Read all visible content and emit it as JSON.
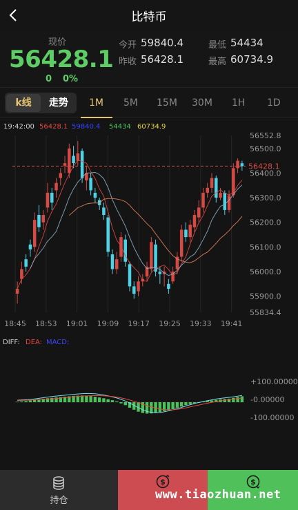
{
  "header": {
    "title": "比特币",
    "back_icon": "chevron-left-icon"
  },
  "price": {
    "label": "现价",
    "value": "56428.1",
    "change": "0",
    "change_pct": "0%",
    "open_label": "今开",
    "open": "59840.4",
    "prev_label": "昨收",
    "prev": "56428.1",
    "low_label": "最低",
    "low": "54434",
    "high_label": "最高",
    "high": "60734.9"
  },
  "tabs": {
    "kline": "k线",
    "trend": "走势",
    "periods": [
      "1M",
      "5M",
      "15M",
      "30M",
      "1H",
      "1D"
    ],
    "active_period": "1M"
  },
  "legend": {
    "time": "19:42:00",
    "v1": "56428.1",
    "v2": "59840.4",
    "v3": "54434",
    "v4": "60734.9",
    "colors": {
      "v1": "#e24a3f",
      "v2": "#3b43ff",
      "v3": "#4bc25a",
      "v4": "#e8d24a"
    }
  },
  "chart_data": {
    "type": "candlestick",
    "y_ticks": [
      "56552.8",
      "56500.0",
      "56400.0",
      "56300.0",
      "56200.0",
      "56100.0",
      "56000.0",
      "55900.0",
      "55834.4"
    ],
    "x_ticks": [
      "18:45",
      "18:53",
      "19:01",
      "19:09",
      "19:17",
      "19:25",
      "19:33",
      "19:41"
    ],
    "current_price_label": "56428.1",
    "ylim": [
      55834.4,
      56552.8
    ],
    "candles": [
      {
        "o": 55910,
        "c": 55930,
        "h": 55960,
        "l": 55870
      },
      {
        "o": 55970,
        "c": 56010,
        "h": 56040,
        "l": 55950
      },
      {
        "o": 56050,
        "c": 56020,
        "h": 56070,
        "l": 56000
      },
      {
        "o": 56110,
        "c": 56090,
        "h": 56130,
        "l": 56060
      },
      {
        "o": 56100,
        "c": 56210,
        "h": 56240,
        "l": 56080
      },
      {
        "o": 56230,
        "c": 56180,
        "h": 56270,
        "l": 56160
      },
      {
        "o": 56200,
        "c": 56230,
        "h": 56250,
        "l": 56170
      },
      {
        "o": 56260,
        "c": 56320,
        "h": 56360,
        "l": 56240
      },
      {
        "o": 56320,
        "c": 56280,
        "h": 56340,
        "l": 56250
      },
      {
        "o": 56330,
        "c": 56360,
        "h": 56380,
        "l": 56300
      },
      {
        "o": 56380,
        "c": 56400,
        "h": 56420,
        "l": 56350
      },
      {
        "o": 56430,
        "c": 56440,
        "h": 56470,
        "l": 56400
      },
      {
        "o": 56400,
        "c": 56500,
        "h": 56520,
        "l": 56380
      },
      {
        "o": 56470,
        "c": 56440,
        "h": 56510,
        "l": 56420
      },
      {
        "o": 56450,
        "c": 56480,
        "h": 56530,
        "l": 56430
      },
      {
        "o": 56490,
        "c": 56380,
        "h": 56500,
        "l": 56360
      },
      {
        "o": 56370,
        "c": 56400,
        "h": 56430,
        "l": 56330
      },
      {
        "o": 56380,
        "c": 56330,
        "h": 56400,
        "l": 56310
      },
      {
        "o": 56320,
        "c": 56300,
        "h": 56340,
        "l": 56280
      },
      {
        "o": 56290,
        "c": 56270,
        "h": 56300,
        "l": 56250
      },
      {
        "o": 56260,
        "c": 56230,
        "h": 56280,
        "l": 56210
      },
      {
        "o": 56220,
        "c": 56080,
        "h": 56230,
        "l": 56060
      },
      {
        "o": 56070,
        "c": 56010,
        "h": 56090,
        "l": 55990
      },
      {
        "o": 56010,
        "c": 56050,
        "h": 56080,
        "l": 55990
      },
      {
        "o": 56060,
        "c": 56140,
        "h": 56160,
        "l": 56040
      },
      {
        "o": 56130,
        "c": 56040,
        "h": 56150,
        "l": 56020
      },
      {
        "o": 56030,
        "c": 55940,
        "h": 56040,
        "l": 55920
      },
      {
        "o": 55940,
        "c": 55910,
        "h": 55960,
        "l": 55890
      },
      {
        "o": 55920,
        "c": 55960,
        "h": 55980,
        "l": 55900
      },
      {
        "o": 55960,
        "c": 55970,
        "h": 55990,
        "l": 55940
      },
      {
        "o": 55980,
        "c": 56020,
        "h": 56040,
        "l": 55960
      },
      {
        "o": 56010,
        "c": 56120,
        "h": 56140,
        "l": 56000
      },
      {
        "o": 56110,
        "c": 56000,
        "h": 56130,
        "l": 55980
      },
      {
        "o": 56000,
        "c": 55990,
        "h": 56020,
        "l": 55950
      },
      {
        "o": 55990,
        "c": 56000,
        "h": 56020,
        "l": 55940
      },
      {
        "o": 55950,
        "c": 55930,
        "h": 55970,
        "l": 55910
      },
      {
        "o": 55960,
        "c": 56000,
        "h": 56020,
        "l": 55950
      },
      {
        "o": 56010,
        "c": 56060,
        "h": 56080,
        "l": 55990
      },
      {
        "o": 56060,
        "c": 56170,
        "h": 56190,
        "l": 56040
      },
      {
        "o": 56170,
        "c": 56140,
        "h": 56200,
        "l": 56120
      },
      {
        "o": 56140,
        "c": 56190,
        "h": 56210,
        "l": 56120
      },
      {
        "o": 56180,
        "c": 56230,
        "h": 56250,
        "l": 56160
      },
      {
        "o": 56220,
        "c": 56260,
        "h": 56290,
        "l": 56200
      },
      {
        "o": 56260,
        "c": 56320,
        "h": 56340,
        "l": 56240
      },
      {
        "o": 56320,
        "c": 56340,
        "h": 56360,
        "l": 56300
      },
      {
        "o": 56340,
        "c": 56380,
        "h": 56400,
        "l": 56320
      },
      {
        "o": 56380,
        "c": 56300,
        "h": 56390,
        "l": 56280
      },
      {
        "o": 56300,
        "c": 56320,
        "h": 56340,
        "l": 56290
      },
      {
        "o": 56320,
        "c": 56250,
        "h": 56330,
        "l": 56230
      },
      {
        "o": 56250,
        "c": 56310,
        "h": 56330,
        "l": 56240
      },
      {
        "o": 56310,
        "c": 56420,
        "h": 56440,
        "l": 56300
      },
      {
        "o": 56420,
        "c": 56450,
        "h": 56460,
        "l": 56400
      },
      {
        "o": 56440,
        "c": 56428,
        "h": 56450,
        "l": 56410
      }
    ],
    "macd_legend": {
      "diff": "DIFF:",
      "dea": "DEA:",
      "macd": "MACD:"
    },
    "macd_ticks": [
      "+100.00000",
      "-0.00000",
      "-100.00000"
    ],
    "macd_ylim": [
      -100,
      100
    ],
    "macd_hist": [
      2,
      4,
      6,
      9,
      12,
      15,
      18,
      20,
      22,
      24,
      26,
      28,
      30,
      32,
      33,
      34,
      33,
      31,
      28,
      24,
      20,
      15,
      10,
      4,
      -6,
      -15,
      -28,
      -38,
      -48,
      -55,
      -58,
      -57,
      -54,
      -50,
      -45,
      -40,
      -35,
      -28,
      -22,
      -15,
      -10,
      -6,
      -3,
      2,
      6,
      9,
      12,
      14,
      16,
      18,
      22,
      26,
      30
    ],
    "up_color": "#4bc25a",
    "down_color": "#d44b46"
  },
  "bottom": {
    "hold_label": "持仓",
    "watermark": "www.tiaozhuan.net"
  }
}
